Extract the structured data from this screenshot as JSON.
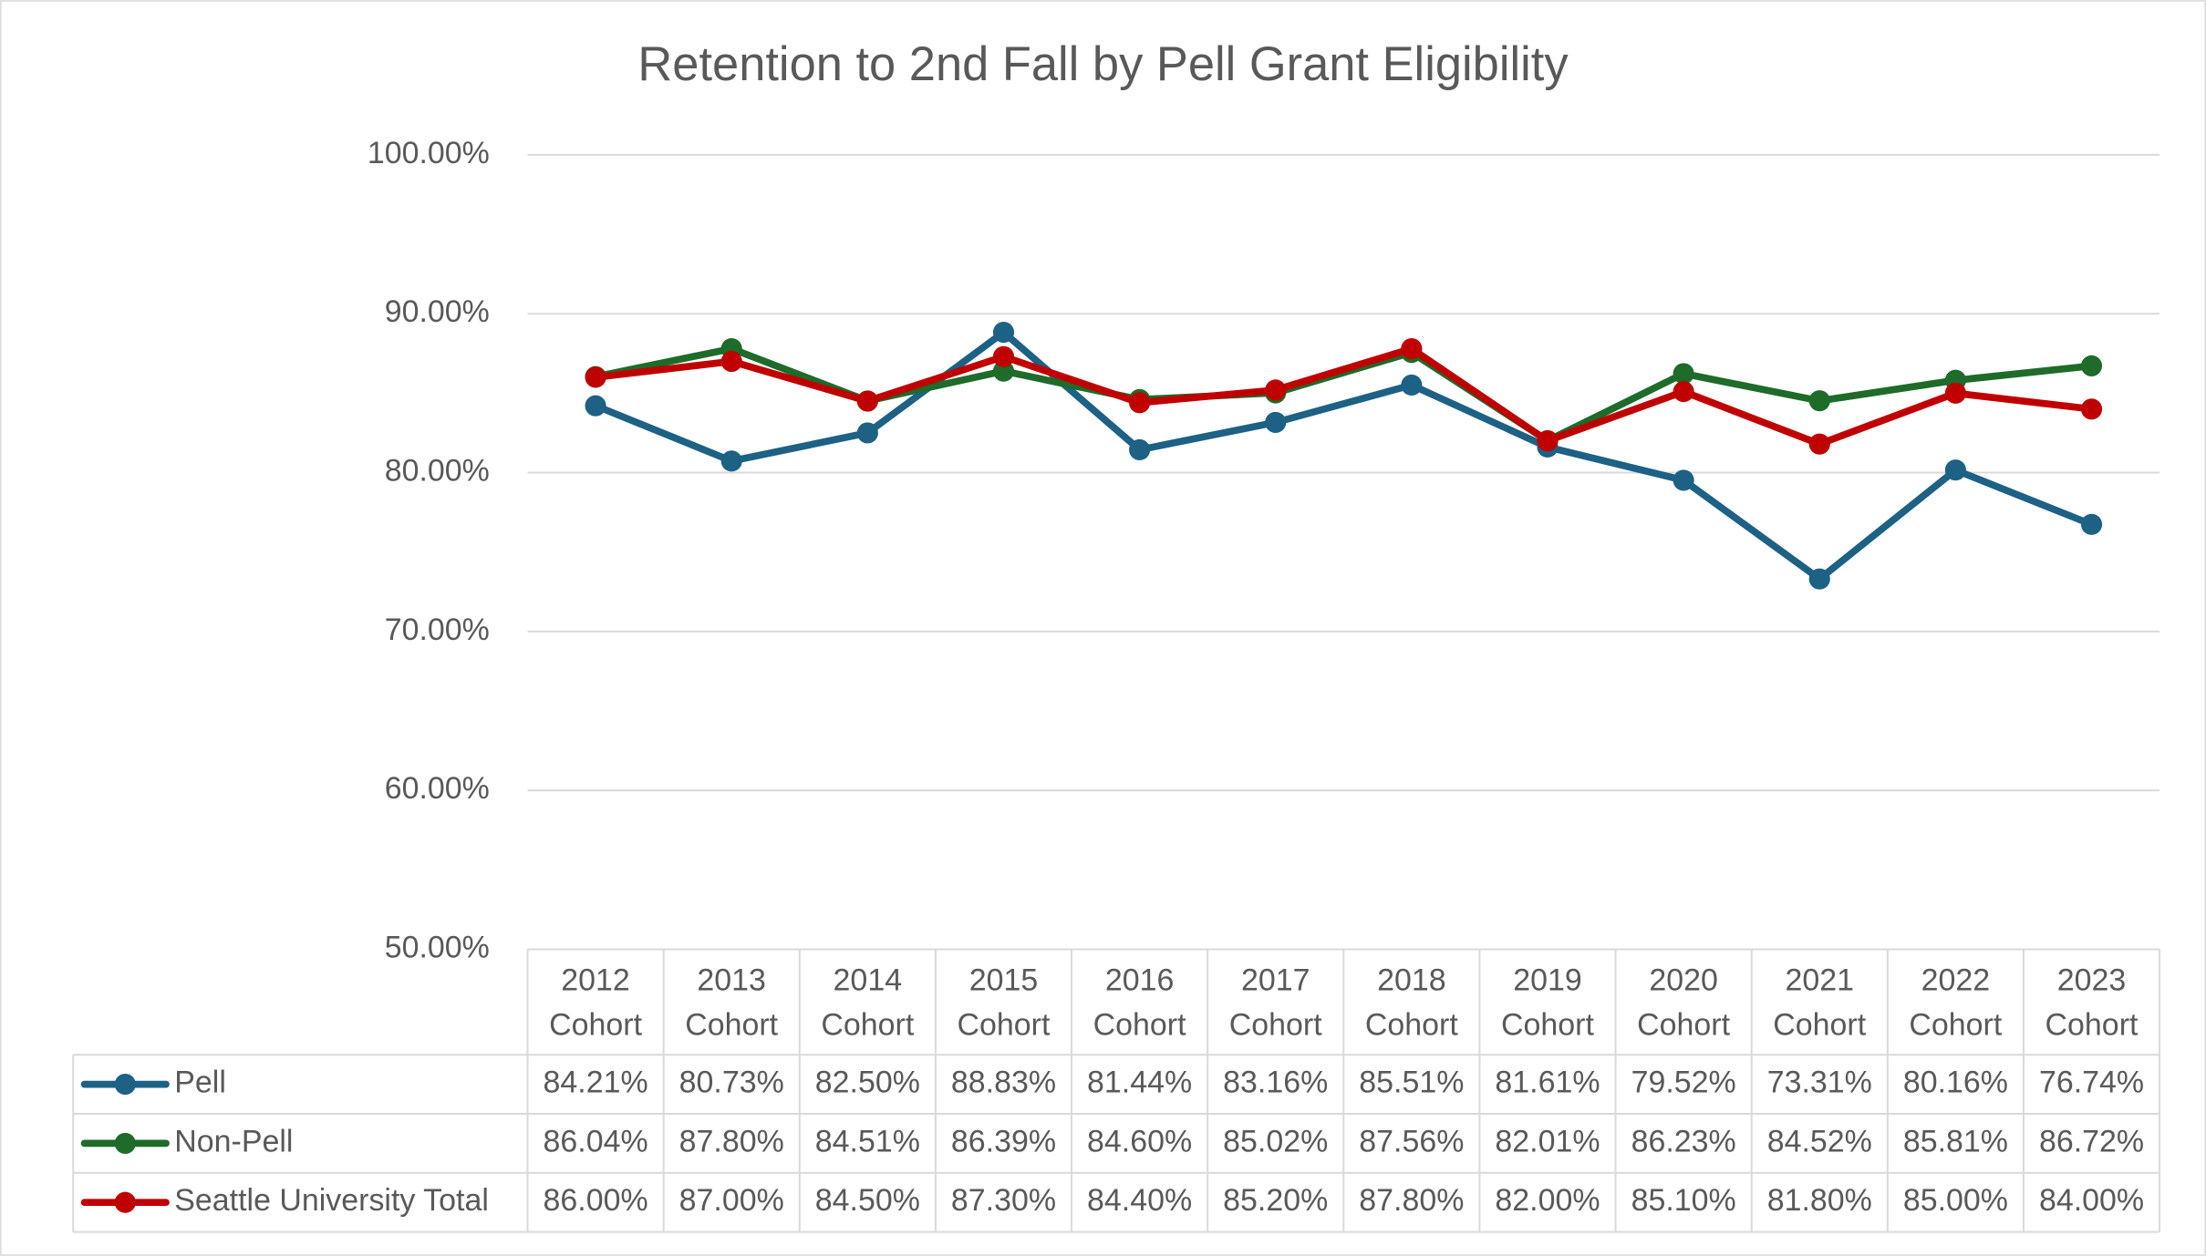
{
  "chart_data": {
    "type": "line",
    "title": "Retention to 2nd Fall by Pell Grant Eligibility",
    "categories": [
      "2012 Cohort",
      "2013 Cohort",
      "2014 Cohort",
      "2015 Cohort",
      "2016 Cohort",
      "2017 Cohort",
      "2018 Cohort",
      "2019 Cohort",
      "2020 Cohort",
      "2021 Cohort",
      "2022 Cohort",
      "2023 Cohort"
    ],
    "series": [
      {
        "name": "Pell",
        "color": "#1d6185",
        "values": [
          84.21,
          80.73,
          82.5,
          88.83,
          81.44,
          83.16,
          85.51,
          81.61,
          79.52,
          73.31,
          80.16,
          76.74
        ],
        "value_labels": [
          "84.21%",
          "80.73%",
          "82.50%",
          "88.83%",
          "81.44%",
          "83.16%",
          "85.51%",
          "81.61%",
          "79.52%",
          "73.31%",
          "80.16%",
          "76.74%"
        ]
      },
      {
        "name": "Non-Pell",
        "color": "#1e6b2a",
        "values": [
          86.04,
          87.8,
          84.51,
          86.39,
          84.6,
          85.02,
          87.56,
          82.01,
          86.23,
          84.52,
          85.81,
          86.72
        ],
        "value_labels": [
          "86.04%",
          "87.80%",
          "84.51%",
          "86.39%",
          "84.60%",
          "85.02%",
          "87.56%",
          "82.01%",
          "86.23%",
          "84.52%",
          "85.81%",
          "86.72%"
        ]
      },
      {
        "name": "Seattle University Total",
        "color": "#c00000",
        "values": [
          86.0,
          87.0,
          84.5,
          87.3,
          84.4,
          85.2,
          87.8,
          82.0,
          85.1,
          81.8,
          85.0,
          84.0
        ],
        "value_labels": [
          "86.00%",
          "87.00%",
          "84.50%",
          "87.30%",
          "84.40%",
          "85.20%",
          "87.80%",
          "82.00%",
          "85.10%",
          "81.80%",
          "85.00%",
          "84.00%"
        ]
      }
    ],
    "ylim": [
      50,
      100
    ],
    "yticks": [
      {
        "value": 50,
        "label": "50.00%"
      },
      {
        "value": 60,
        "label": "60.00%"
      },
      {
        "value": 70,
        "label": "70.00%"
      },
      {
        "value": 80,
        "label": "80.00%"
      },
      {
        "value": 90,
        "label": "90.00%"
      },
      {
        "value": 100,
        "label": "100.00%"
      }
    ],
    "grid": true
  }
}
